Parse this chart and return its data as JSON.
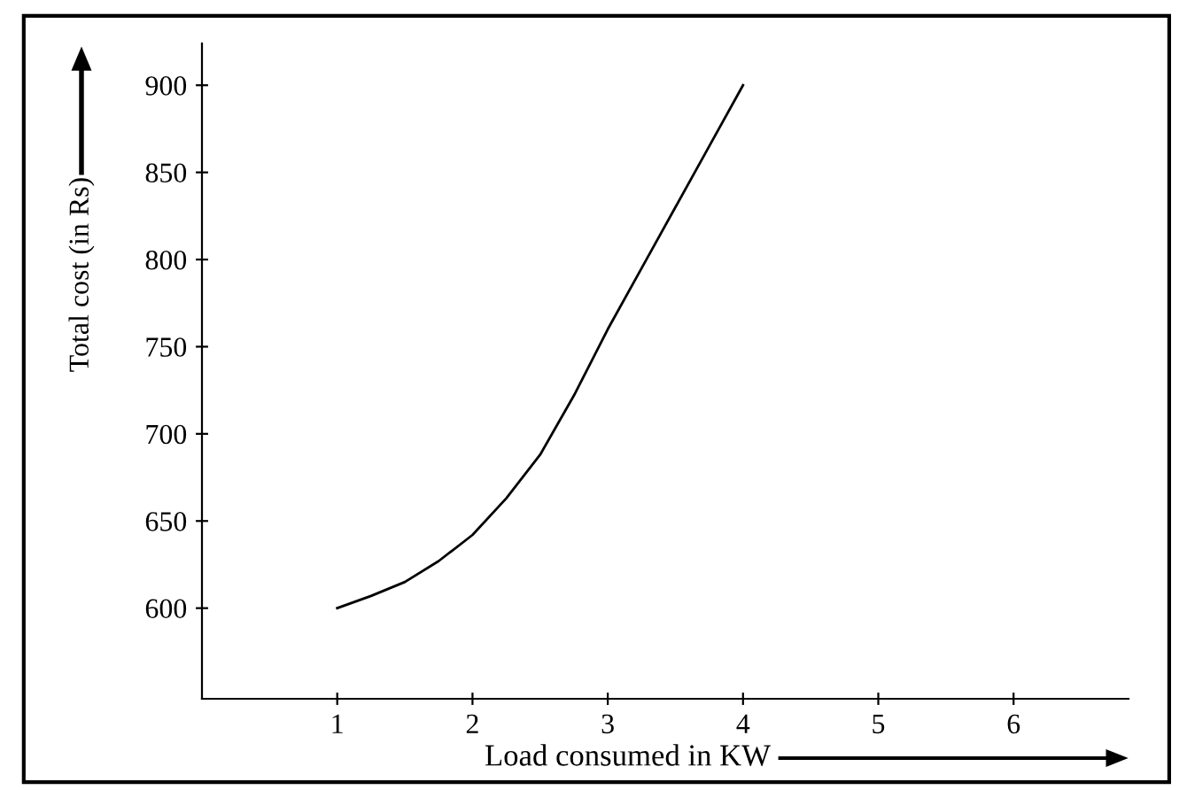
{
  "chart_data": {
    "type": "line",
    "xlabel": "Load consumed in KW",
    "ylabel": "Total cost (in Rs)",
    "x": [
      1,
      1.25,
      1.5,
      1.75,
      2,
      2.25,
      2.5,
      2.75,
      3,
      3.25,
      3.5,
      3.75,
      4
    ],
    "series": [
      {
        "color": "#000000",
        "values": [
          600,
          607,
          615,
          627,
          642,
          663,
          688,
          722,
          760,
          795,
          830,
          865,
          900
        ]
      }
    ],
    "xlim": [
      0,
      6.85
    ],
    "xticks": [
      1,
      2,
      3,
      4,
      5,
      6
    ],
    "ylim": [
      548,
      924
    ],
    "yticks": [
      600,
      650,
      700,
      750,
      800,
      850,
      900
    ],
    "grid": false,
    "marker": "none",
    "line_style": "solid"
  }
}
